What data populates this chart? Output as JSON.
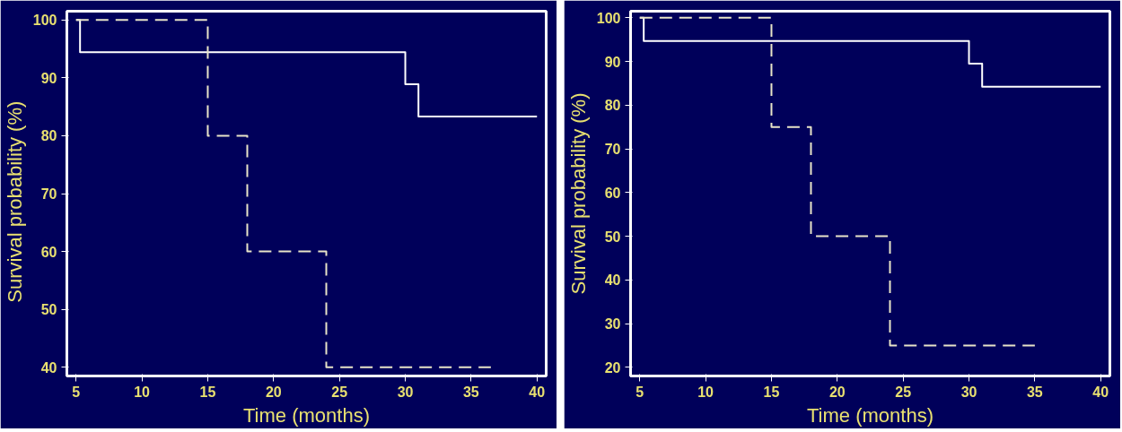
{
  "chart_data": [
    {
      "type": "step",
      "xlabel": "Time (months)",
      "ylabel": "Survival probability    (%)",
      "xlim": [
        4.3,
        40.7
      ],
      "ylim": [
        38.5,
        101.5
      ],
      "xticks": [
        5,
        10,
        15,
        20,
        25,
        30,
        35,
        40
      ],
      "yticks": [
        40,
        50,
        60,
        70,
        80,
        90,
        100
      ],
      "series": [
        {
          "color": "#ffffff",
          "line_style": "solid",
          "x": [
            5,
            5.3,
            30,
            31,
            40
          ],
          "values": [
            100,
            94.4,
            88.9,
            83.3,
            83.3
          ]
        },
        {
          "color": "#e8e4c8",
          "line_style": "dashed",
          "x": [
            5,
            15,
            18,
            24,
            36.5
          ],
          "values": [
            100,
            80,
            60,
            40,
            40
          ]
        }
      ]
    },
    {
      "type": "step",
      "xlabel": "Time (months)",
      "ylabel": "Survival probability (%)",
      "xlim": [
        4.3,
        40.7
      ],
      "ylim": [
        18,
        101.5
      ],
      "xticks": [
        5,
        10,
        15,
        20,
        25,
        30,
        35,
        40
      ],
      "yticks": [
        20,
        30,
        40,
        50,
        60,
        70,
        80,
        90,
        100
      ],
      "series": [
        {
          "color": "#ffffff",
          "line_style": "solid",
          "x": [
            5,
            5.3,
            30,
            31,
            40
          ],
          "values": [
            100,
            94.7,
            89.5,
            84.2,
            84.2
          ]
        },
        {
          "color": "#e8e4c8",
          "line_style": "dashed",
          "x": [
            5,
            15,
            18,
            24,
            35
          ],
          "values": [
            100,
            75,
            50,
            25,
            25
          ]
        }
      ]
    }
  ]
}
